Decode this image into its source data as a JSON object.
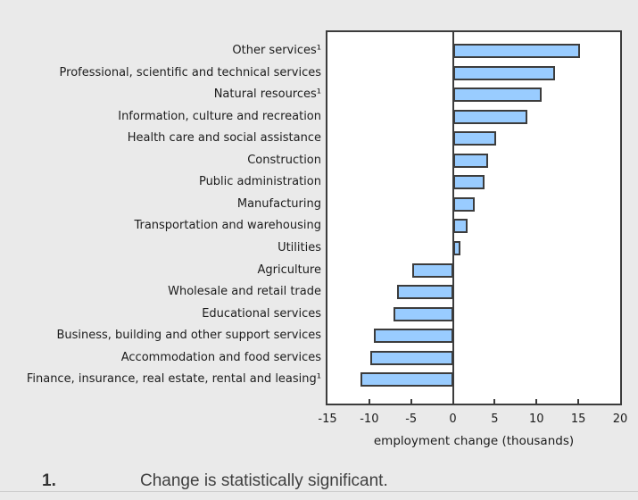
{
  "chart_data": {
    "type": "bar",
    "orientation": "horizontal",
    "categories": [
      "Other services¹",
      "Professional, scientific and technical services",
      "Natural resources¹",
      "Information, culture and recreation",
      "Health care and social assistance",
      "Construction",
      "Public administration",
      "Manufacturing",
      "Transportation and warehousing",
      "Utilities",
      "Agriculture",
      "Wholesale and retail trade",
      "Educational services",
      "Business, building and other support services",
      "Accommodation and food services",
      "Finance, insurance, real estate, rental and leasing¹"
    ],
    "values": [
      15.2,
      12.2,
      10.6,
      8.9,
      5.2,
      4.2,
      3.8,
      2.6,
      1.8,
      0.9,
      -4.9,
      -6.7,
      -7.1,
      -9.4,
      -9.9,
      -11.1
    ],
    "title": "",
    "xlabel": "employment change (thousands)",
    "ylabel": "",
    "xlim": [
      -15,
      20
    ],
    "xticks": [
      -15,
      -10,
      -5,
      0,
      5,
      10,
      15,
      20
    ],
    "grid": false,
    "legend": false,
    "bar_fill": "#99ccff",
    "bar_border": "#3c3c3c"
  },
  "footnote": {
    "marker": "1.",
    "text": "Change is statistically significant."
  },
  "colors": {
    "background": "#eaeaea",
    "plot_background": "#ffffff",
    "axis": "#3c3c3c",
    "text": "#1c1c1c"
  }
}
